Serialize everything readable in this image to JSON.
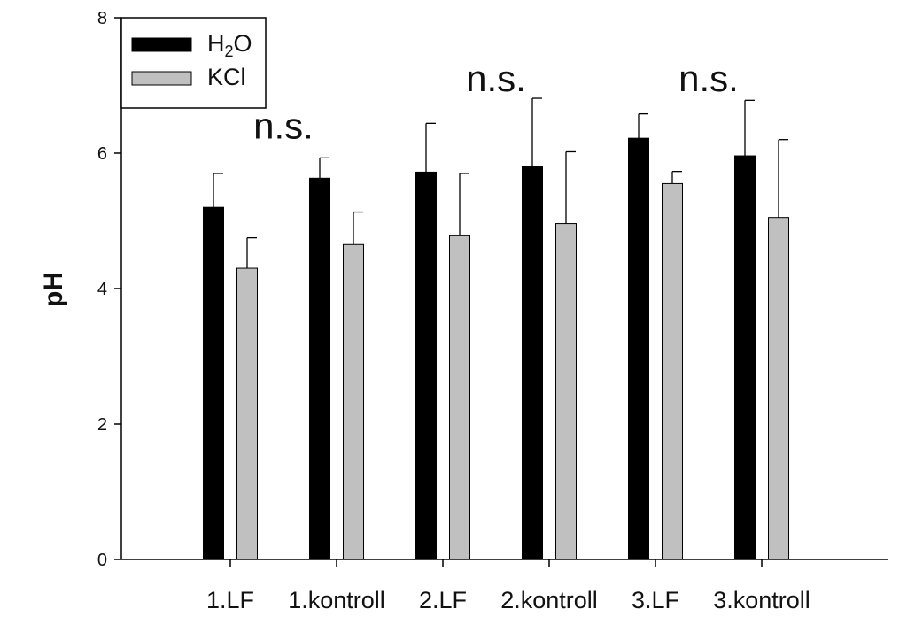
{
  "chart_data": {
    "type": "bar",
    "title": "",
    "xlabel": "",
    "ylabel": "pH",
    "ylim": [
      0,
      8
    ],
    "yticks": [
      0,
      2,
      4,
      6,
      8
    ],
    "grid": false,
    "legend_position": "top-left",
    "categories": [
      "1.LF",
      "1.kontroll",
      "2.LF",
      "2.kontroll",
      "3.LF",
      "3.kontroll"
    ],
    "series": [
      {
        "name": "H2O",
        "legend_main": "H",
        "legend_sub": "2",
        "legend_tail": "O",
        "color": "#000000",
        "values": [
          5.2,
          5.63,
          5.72,
          5.8,
          6.22,
          5.96
        ],
        "errors": [
          0.5,
          0.3,
          0.72,
          1.01,
          0.36,
          0.82
        ]
      },
      {
        "name": "KCl",
        "legend_main": "KCl",
        "legend_sub": "",
        "legend_tail": "",
        "color": "#c0c0c0",
        "values": [
          4.3,
          4.65,
          4.78,
          4.96,
          5.55,
          5.05
        ],
        "errors": [
          0.45,
          0.48,
          0.92,
          1.06,
          0.18,
          1.15
        ]
      }
    ],
    "annotations": [
      {
        "text": "n.s.",
        "category_index": 0,
        "y": 6.4
      },
      {
        "text": "n.s.",
        "category_index": 2,
        "y": 7.1
      },
      {
        "text": "n.s.",
        "category_index": 4,
        "y": 7.1
      }
    ]
  }
}
